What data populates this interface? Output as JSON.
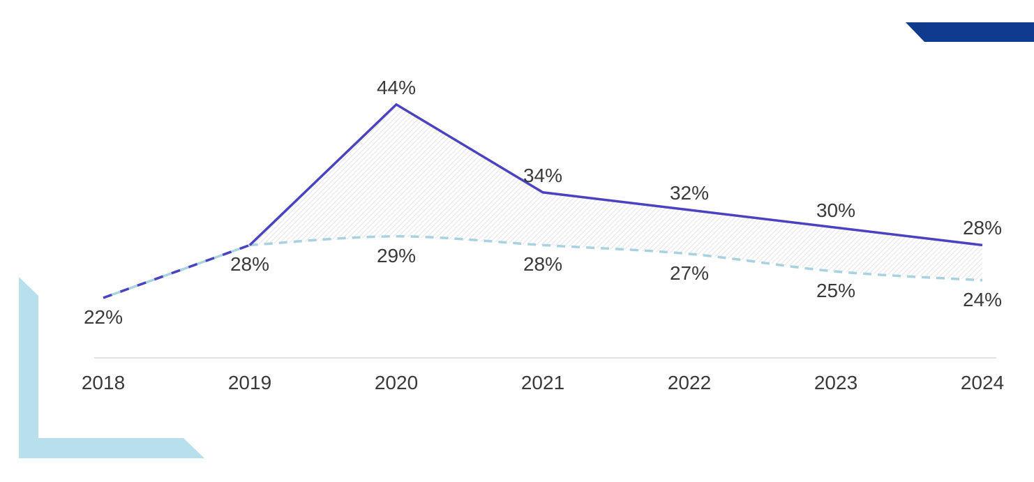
{
  "page": {
    "background_color": "#ffffff"
  },
  "decorations": {
    "top_right_band": {
      "color": "#0f3a8e"
    },
    "bottom_left_bracket": {
      "color": "#b7dfec"
    }
  },
  "chart_data": {
    "type": "line",
    "title": "",
    "categories": [
      "2018",
      "2019",
      "2020",
      "2021",
      "2022",
      "2023",
      "2024"
    ],
    "series": [
      {
        "name": "upper line",
        "color": "#4b42c0",
        "line_style": "solid; drawn dashed over 2018-2019 where it overlaps the lower line",
        "values": [
          22,
          28,
          44,
          34,
          32,
          30,
          28
        ],
        "labels": [
          "22%",
          "28%",
          "44%",
          "34%",
          "32%",
          "30%",
          "28%"
        ]
      },
      {
        "name": "lower line",
        "color": "#a9d2e1",
        "line_style": "dashed",
        "values": [
          22,
          28,
          29,
          28,
          27,
          25,
          24
        ],
        "labels": [
          "22%",
          "28%",
          "29%",
          "28%",
          "27%",
          "25%",
          "24%"
        ]
      }
    ],
    "gap_area_fill": {
      "style": "diagonal-hatch",
      "hatch_color": "#e7e7ea"
    },
    "axes": {
      "x_baseline_visible": true,
      "x_baseline_color": "#e3e3e3",
      "y_axis_visible": false,
      "gridlines": false
    },
    "legend": {
      "visible": false
    },
    "value_label_color": "#3a3a3a"
  }
}
